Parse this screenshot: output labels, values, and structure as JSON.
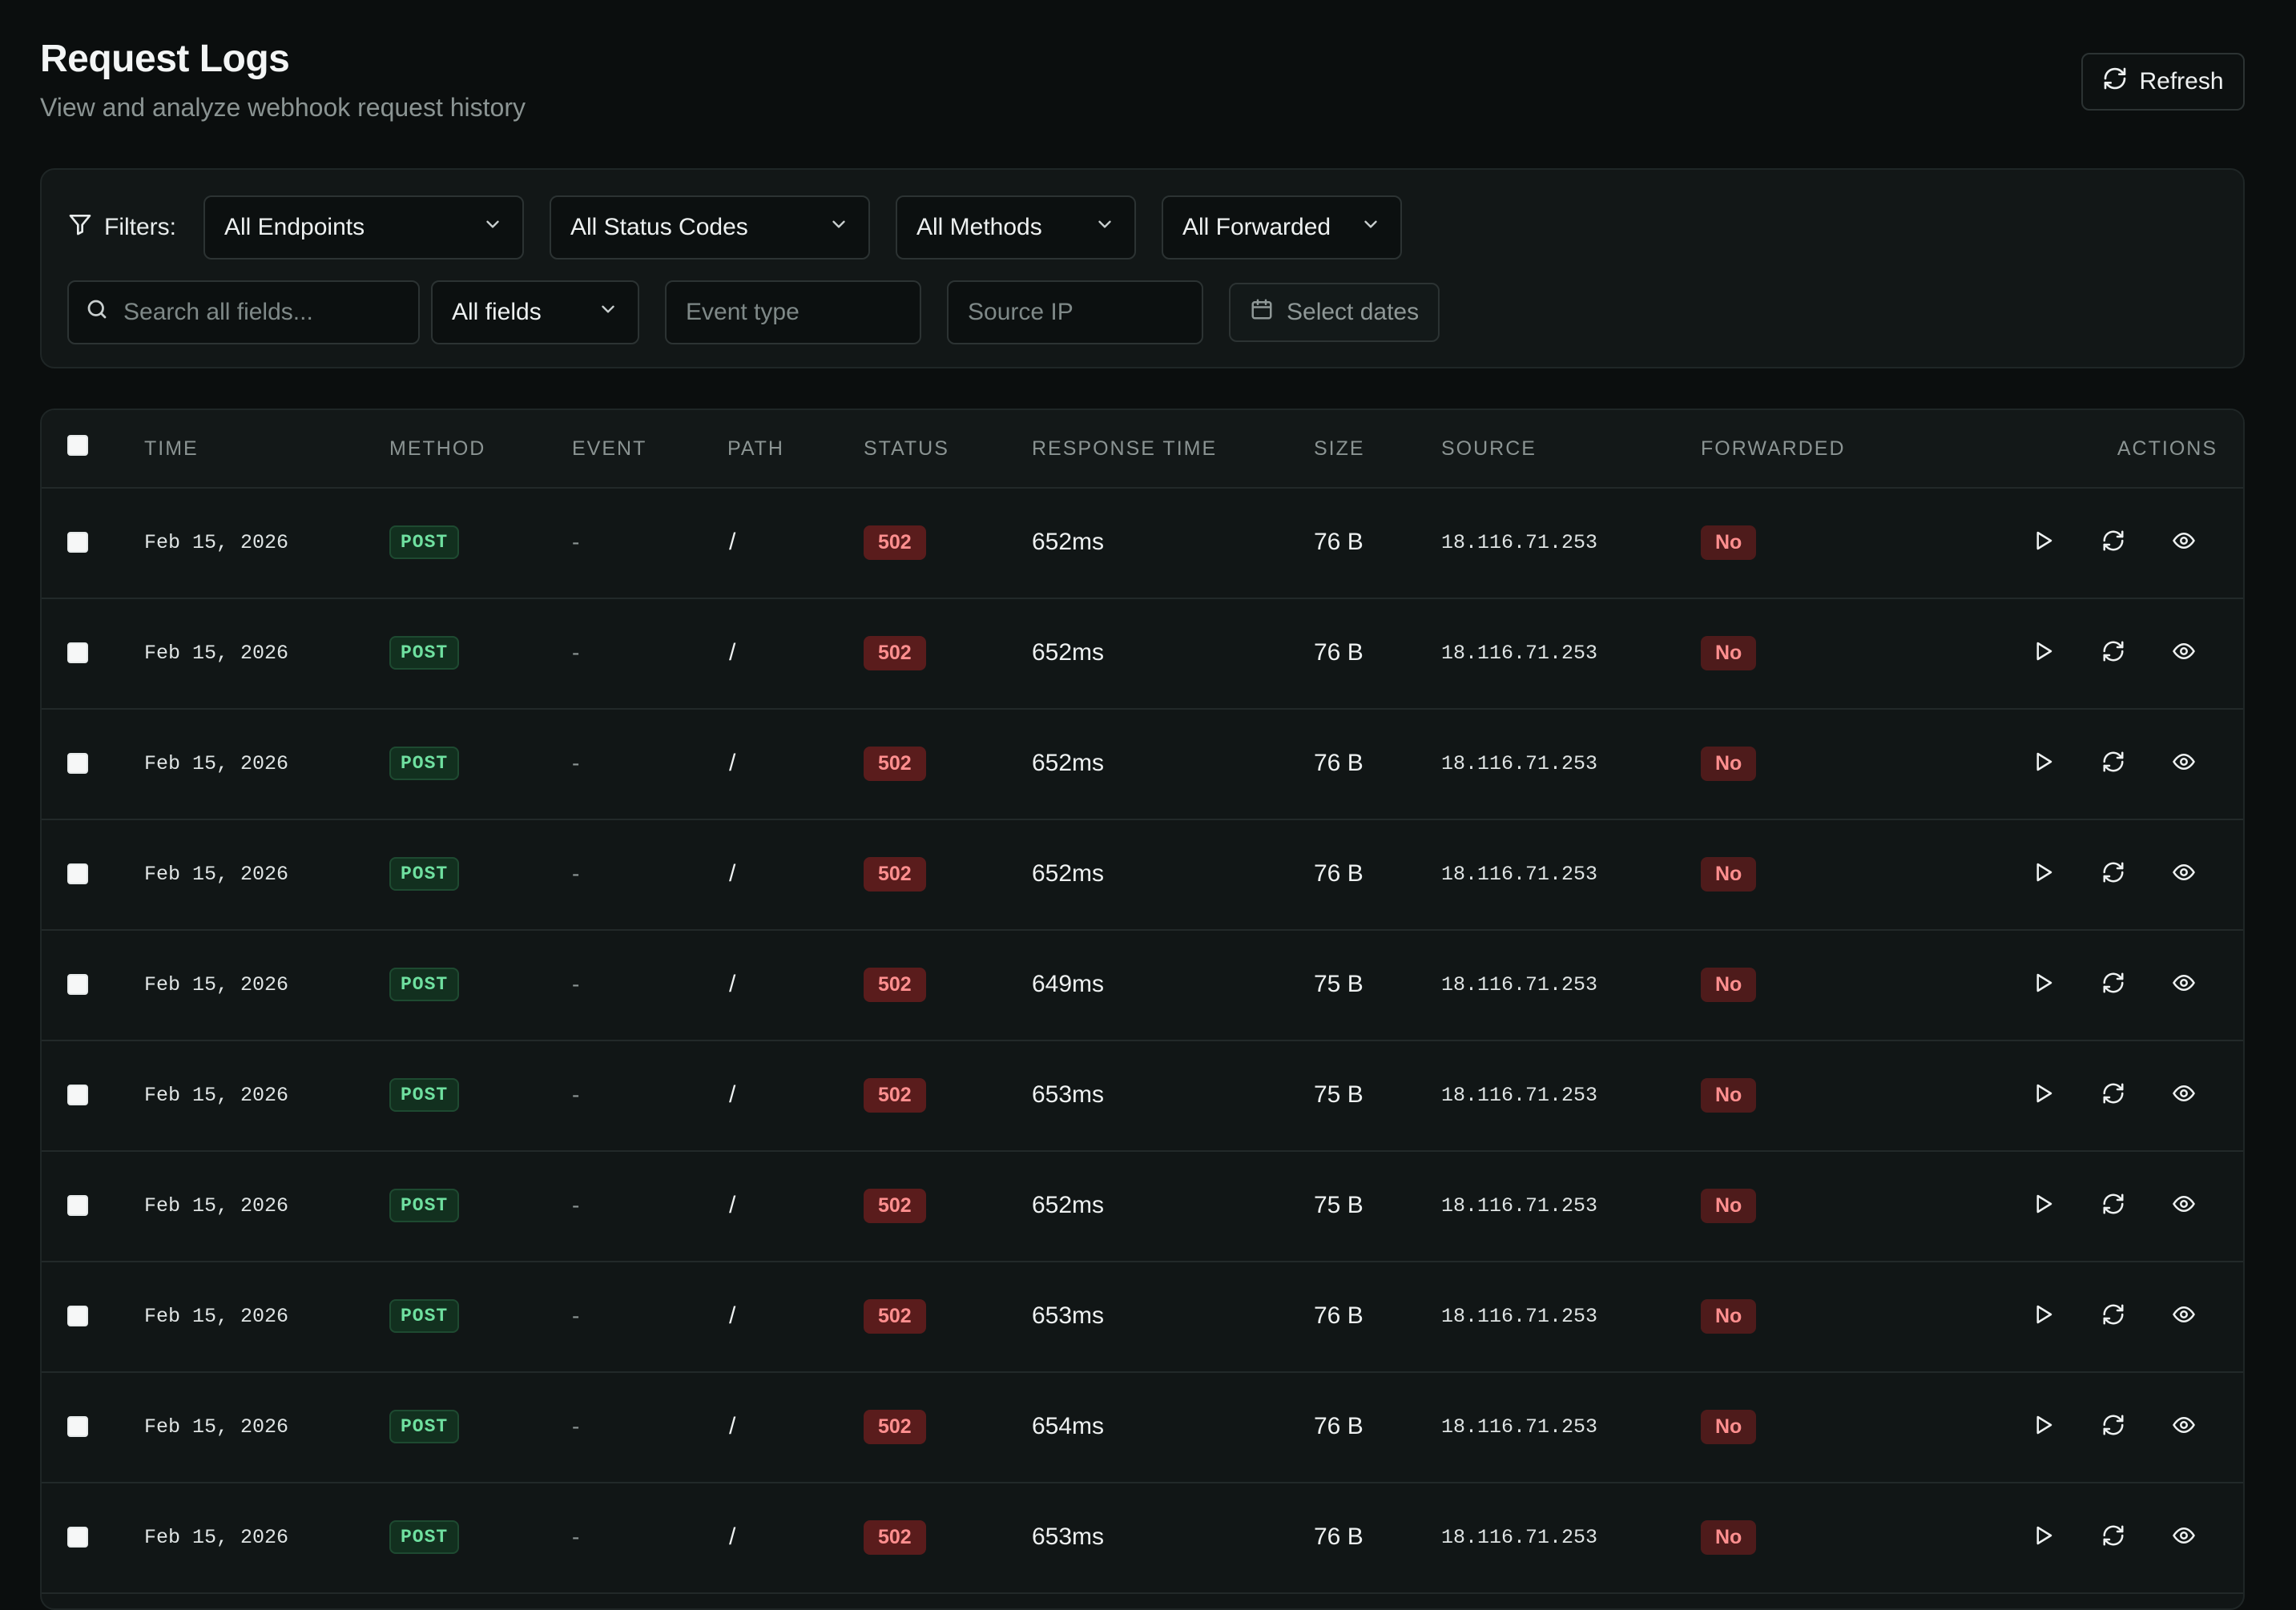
{
  "header": {
    "title": "Request Logs",
    "subtitle": "View and analyze webhook request history",
    "refresh_label": "Refresh"
  },
  "filters": {
    "label": "Filters:",
    "endpoints": "All Endpoints",
    "status_codes": "All Status Codes",
    "methods": "All Methods",
    "forwarded": "All Forwarded",
    "search_placeholder": "Search all fields...",
    "field_scope": "All fields",
    "event_type_placeholder": "Event type",
    "source_ip_placeholder": "Source IP",
    "dates_label": "Select dates"
  },
  "table": {
    "columns": {
      "time": "TIME",
      "method": "METHOD",
      "event": "EVENT",
      "path": "PATH",
      "status": "STATUS",
      "response_time": "RESPONSE TIME",
      "size": "SIZE",
      "source": "SOURCE",
      "forwarded": "FORWARDED",
      "actions": "ACTIONS"
    },
    "rows": [
      {
        "time": "Feb 15, 2026",
        "method": "POST",
        "event": "-",
        "path": "/",
        "status": "502",
        "response_time": "652ms",
        "size": "76 B",
        "source": "18.116.71.253",
        "forwarded": "No"
      },
      {
        "time": "Feb 15, 2026",
        "method": "POST",
        "event": "-",
        "path": "/",
        "status": "502",
        "response_time": "652ms",
        "size": "76 B",
        "source": "18.116.71.253",
        "forwarded": "No"
      },
      {
        "time": "Feb 15, 2026",
        "method": "POST",
        "event": "-",
        "path": "/",
        "status": "502",
        "response_time": "652ms",
        "size": "76 B",
        "source": "18.116.71.253",
        "forwarded": "No"
      },
      {
        "time": "Feb 15, 2026",
        "method": "POST",
        "event": "-",
        "path": "/",
        "status": "502",
        "response_time": "652ms",
        "size": "76 B",
        "source": "18.116.71.253",
        "forwarded": "No"
      },
      {
        "time": "Feb 15, 2026",
        "method": "POST",
        "event": "-",
        "path": "/",
        "status": "502",
        "response_time": "649ms",
        "size": "75 B",
        "source": "18.116.71.253",
        "forwarded": "No"
      },
      {
        "time": "Feb 15, 2026",
        "method": "POST",
        "event": "-",
        "path": "/",
        "status": "502",
        "response_time": "653ms",
        "size": "75 B",
        "source": "18.116.71.253",
        "forwarded": "No"
      },
      {
        "time": "Feb 15, 2026",
        "method": "POST",
        "event": "-",
        "path": "/",
        "status": "502",
        "response_time": "652ms",
        "size": "75 B",
        "source": "18.116.71.253",
        "forwarded": "No"
      },
      {
        "time": "Feb 15, 2026",
        "method": "POST",
        "event": "-",
        "path": "/",
        "status": "502",
        "response_time": "653ms",
        "size": "76 B",
        "source": "18.116.71.253",
        "forwarded": "No"
      },
      {
        "time": "Feb 15, 2026",
        "method": "POST",
        "event": "-",
        "path": "/",
        "status": "502",
        "response_time": "654ms",
        "size": "76 B",
        "source": "18.116.71.253",
        "forwarded": "No"
      },
      {
        "time": "Feb 15, 2026",
        "method": "POST",
        "event": "-",
        "path": "/",
        "status": "502",
        "response_time": "653ms",
        "size": "76 B",
        "source": "18.116.71.253",
        "forwarded": "No"
      }
    ],
    "row_actions": [
      "play-icon",
      "refresh-icon",
      "eye-icon"
    ]
  }
}
